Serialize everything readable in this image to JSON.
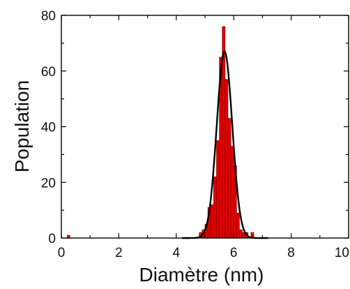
{
  "chart_data": {
    "type": "bar",
    "xlabel": "Diamètre (nm)",
    "ylabel": "Population",
    "xlim": [
      0,
      10
    ],
    "ylim": [
      0,
      80
    ],
    "x_ticks": [
      "0",
      "2",
      "4",
      "6",
      "8",
      "10"
    ],
    "y_ticks": [
      "0",
      "20",
      "40",
      "60",
      "80"
    ],
    "bin_width": 0.1,
    "bar_color": "#e00000",
    "fit_color": "#000000",
    "histogram": [
      {
        "x": 0.25,
        "y": 1
      },
      {
        "x": 4.85,
        "y": 2
      },
      {
        "x": 4.95,
        "y": 3
      },
      {
        "x": 5.05,
        "y": 5
      },
      {
        "x": 5.15,
        "y": 11
      },
      {
        "x": 5.25,
        "y": 12
      },
      {
        "x": 5.35,
        "y": 22
      },
      {
        "x": 5.45,
        "y": 35
      },
      {
        "x": 5.55,
        "y": 65
      },
      {
        "x": 5.65,
        "y": 76
      },
      {
        "x": 5.75,
        "y": 57
      },
      {
        "x": 5.85,
        "y": 43
      },
      {
        "x": 5.95,
        "y": 33
      },
      {
        "x": 6.05,
        "y": 26
      },
      {
        "x": 6.15,
        "y": 9
      },
      {
        "x": 6.25,
        "y": 3
      },
      {
        "x": 6.35,
        "y": 2
      },
      {
        "x": 6.45,
        "y": 2
      },
      {
        "x": 6.65,
        "y": 2
      }
    ],
    "fit": {
      "type": "gaussian",
      "center": 5.68,
      "sigma": 0.27,
      "amplitude": 67
    }
  }
}
